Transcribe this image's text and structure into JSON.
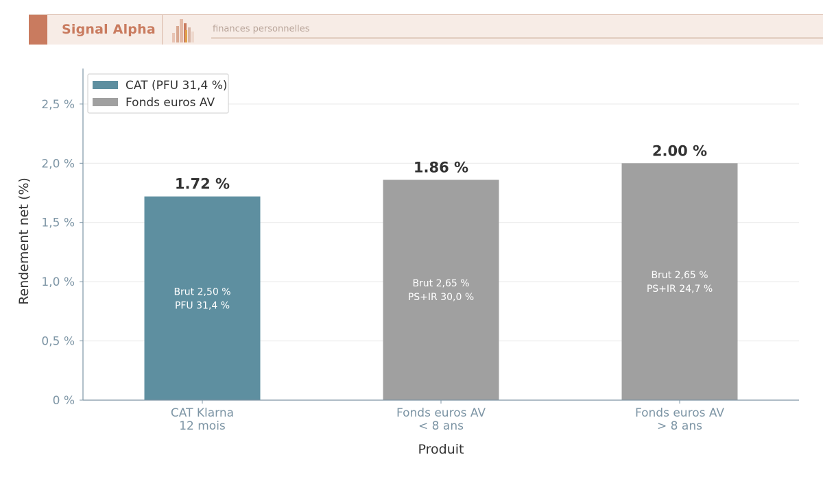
{
  "header": {
    "brand": "Signal Alpha",
    "tagline": "finances personnelles",
    "logo_icon": "bar-chart-logo-icon"
  },
  "colors": {
    "cat": "#5e8fa0",
    "fonds": "#a0a0a0",
    "brand": "#c97b5f",
    "axis": "#7d95a5",
    "grid": "#e8e8e8"
  },
  "chart_data": {
    "type": "bar",
    "title": "",
    "xlabel": "Produit",
    "ylabel": "Rendement net (%)",
    "ylim": [
      0,
      2.8
    ],
    "yticks": [
      {
        "value": 0,
        "label": "0 %"
      },
      {
        "value": 0.5,
        "label": "0,5 %"
      },
      {
        "value": 1.0,
        "label": "1,0 %"
      },
      {
        "value": 1.5,
        "label": "1,5 %"
      },
      {
        "value": 2.0,
        "label": "2,0 %"
      },
      {
        "value": 2.5,
        "label": "2,5 %"
      }
    ],
    "grid": true,
    "legend_position": "top-left",
    "legend": [
      {
        "label": "CAT (PFU 31,4 %)",
        "color": "#5e8fa0"
      },
      {
        "label": "Fonds euros AV",
        "color": "#a0a0a0"
      }
    ],
    "bars": [
      {
        "category": [
          "CAT Klarna",
          "12 mois"
        ],
        "value": 1.72,
        "value_label": "1.72 %",
        "inner_label": [
          "Brut 2,50 %",
          "PFU 31,4 %"
        ],
        "color": "#5e8fa0"
      },
      {
        "category": [
          "Fonds euros AV",
          "< 8 ans"
        ],
        "value": 1.86,
        "value_label": "1.86 %",
        "inner_label": [
          "Brut 2,65 %",
          "PS+IR 30,0 %"
        ],
        "color": "#a0a0a0"
      },
      {
        "category": [
          "Fonds euros AV",
          "> 8 ans"
        ],
        "value": 2.0,
        "value_label": "2.00 %",
        "inner_label": [
          "Brut 2,65 %",
          "PS+IR 24,7 %"
        ],
        "color": "#a0a0a0"
      }
    ]
  }
}
